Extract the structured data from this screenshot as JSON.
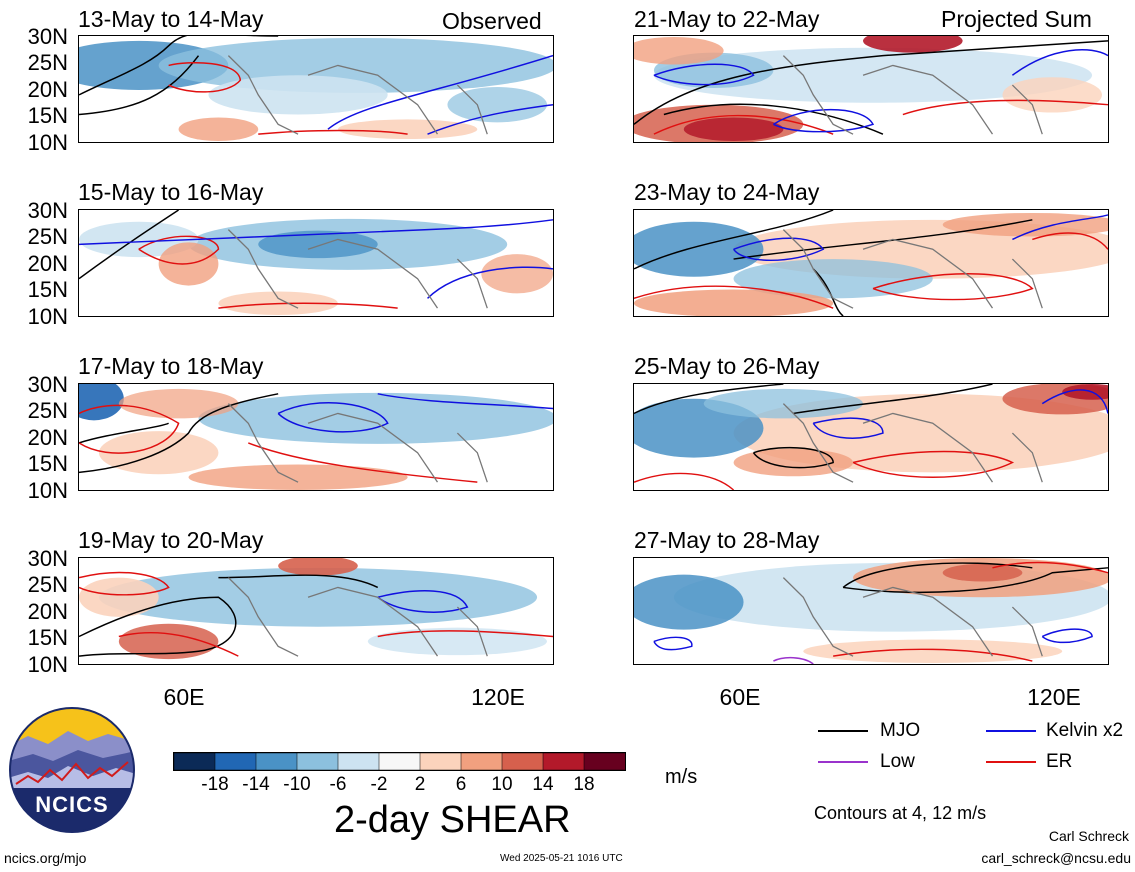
{
  "panels": [
    {
      "title": "13-May to 14-May",
      "corner": "Observed"
    },
    {
      "title": "15-May to 16-May",
      "corner": ""
    },
    {
      "title": "17-May to 18-May",
      "corner": ""
    },
    {
      "title": "19-May to 20-May",
      "corner": ""
    },
    {
      "title": "21-May to 22-May",
      "corner": "Projected Sum"
    },
    {
      "title": "23-May to 24-May",
      "corner": ""
    },
    {
      "title": "25-May to 26-May",
      "corner": ""
    },
    {
      "title": "27-May to 28-May",
      "corner": ""
    }
  ],
  "lat_labels": [
    "30N",
    "25N",
    "20N",
    "15N",
    "10N"
  ],
  "lon_labels": [
    "60E",
    "120E"
  ],
  "colorbar": {
    "ticks": [
      "-18",
      "-14",
      "-10",
      "-6",
      "-2",
      "2",
      "6",
      "10",
      "14",
      "18"
    ],
    "colors": [
      "#0b2a57",
      "#2167b4",
      "#4a92c6",
      "#8cc0de",
      "#cde3f1",
      "#f7f7f7",
      "#fbd3bc",
      "#f1a07f",
      "#d6604d",
      "#b3192a",
      "#67001f"
    ],
    "unit": "m/s",
    "title": "2-day SHEAR"
  },
  "legend": {
    "items": [
      {
        "label": "MJO",
        "color": "#000000"
      },
      {
        "label": "Kelvin x2",
        "color": "#1010e0"
      },
      {
        "label": "Low",
        "color": "#9a33cc"
      },
      {
        "label": "ER",
        "color": "#e01010"
      }
    ],
    "contours_note": "Contours at 4, 12 m/s"
  },
  "footer": {
    "left": "ncics.org/mjo",
    "center": "Wed 2025-05-21 1016 UTC",
    "author": "Carl Schreck",
    "email": "carl_schreck@ncsu.edu"
  },
  "logo": {
    "text": "NCICS"
  }
}
